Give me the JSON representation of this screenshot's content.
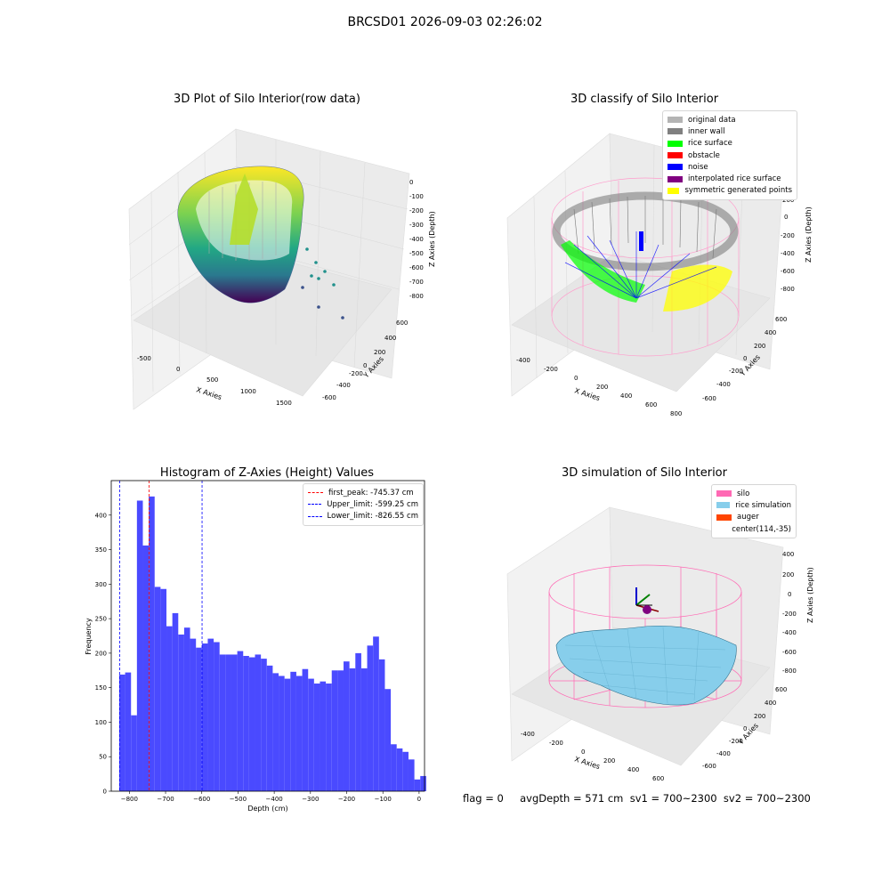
{
  "suptitle": "BRCSD01 2026-09-03 02:26:02",
  "panels": {
    "raw": {
      "title": "3D Plot of Silo Interior(row data)",
      "xlabel": "X Axies",
      "ylabel": "Y Axies",
      "zlabel": "Z Axies (Depth)",
      "xticks": [
        "-500",
        "0",
        "500",
        "1000",
        "1500"
      ],
      "yticks": [
        "600",
        "400",
        "200",
        "0",
        "-200",
        "-400",
        "-600"
      ],
      "zticks": [
        "0",
        "-100",
        "-200",
        "-300",
        "-400",
        "-500",
        "-600",
        "-700",
        "-800"
      ]
    },
    "classify": {
      "title": "3D classify of Silo Interior",
      "xlabel": "X Axies",
      "ylabel": "Y Axies",
      "zlabel": "Z Axies (Depth)",
      "xticks": [
        "-400",
        "-200",
        "0",
        "200",
        "400",
        "600",
        "800"
      ],
      "yticks": [
        "600",
        "400",
        "200",
        "0",
        "-200",
        "-400",
        "-600"
      ],
      "zticks": [
        "400",
        "200",
        "0",
        "-200",
        "-400",
        "-600",
        "-800"
      ],
      "legend": [
        {
          "label": "original data",
          "color": "#b4b4b4"
        },
        {
          "label": "inner wall",
          "color": "#808080"
        },
        {
          "label": "rice surface",
          "color": "#00ff00"
        },
        {
          "label": "obstacle",
          "color": "#ff0000"
        },
        {
          "label": "noise",
          "color": "#0000ff"
        },
        {
          "label": "interpolated rice surface",
          "color": "#800080"
        },
        {
          "label": "symmetric generated points",
          "color": "#ffff00"
        }
      ]
    },
    "simulation": {
      "title": "3D simulation of Silo Interior",
      "xlabel": "X Axies",
      "ylabel": "Y Axies",
      "zlabel": "Z Axies (Depth)",
      "xticks": [
        "-400",
        "-200",
        "0",
        "200",
        "400",
        "600"
      ],
      "yticks": [
        "600",
        "400",
        "200",
        "0",
        "-200",
        "-400",
        "-600"
      ],
      "zticks": [
        "400",
        "200",
        "0",
        "-200",
        "-400",
        "-600",
        "-800"
      ],
      "legend": [
        {
          "label": "silo",
          "color": "#ff69b4"
        },
        {
          "label": "rice simulation",
          "color": "#87ceeb"
        },
        {
          "label": "auger",
          "color": "#ff4500"
        },
        {
          "label": "center(114,-35)",
          "color": ""
        }
      ]
    }
  },
  "footer": {
    "text": "flag = 0     avgDepth = 571 cm  sv1 = 700~2300  sv2 = 700~2300"
  },
  "chart_data": {
    "type": "bar",
    "title": "Histogram of Z-Axies (Height) Values",
    "xlabel": "Depth (cm)",
    "ylabel": "Frequency",
    "xlim": [
      -850,
      15
    ],
    "ylim": [
      0,
      450
    ],
    "xticks": [
      -800,
      -700,
      -600,
      -500,
      -400,
      -300,
      -200,
      -100,
      0
    ],
    "yticks": [
      0,
      50,
      100,
      150,
      200,
      250,
      300,
      350,
      400
    ],
    "bar_color": "#4a4aff",
    "bin_start": -828,
    "bin_width": 16.3,
    "values": [
      169,
      172,
      110,
      421,
      356,
      427,
      296,
      293,
      239,
      258,
      227,
      237,
      221,
      208,
      214,
      221,
      216,
      198,
      198,
      198,
      203,
      196,
      194,
      198,
      192,
      182,
      171,
      167,
      163,
      173,
      167,
      177,
      163,
      156,
      159,
      156,
      175,
      175,
      188,
      178,
      200,
      178,
      211,
      224,
      191,
      148,
      68,
      62,
      57,
      46,
      17,
      22
    ],
    "lines": [
      {
        "label": "first_peak: -745.37 cm",
        "x": -745.37,
        "color": "#ff0000"
      },
      {
        "label": "Upper_limit: -599.25 cm",
        "x": -599.25,
        "color": "#0000ff"
      },
      {
        "label": "Lower_limit: -826.55 cm",
        "x": -826.55,
        "color": "#0000ff"
      }
    ]
  }
}
